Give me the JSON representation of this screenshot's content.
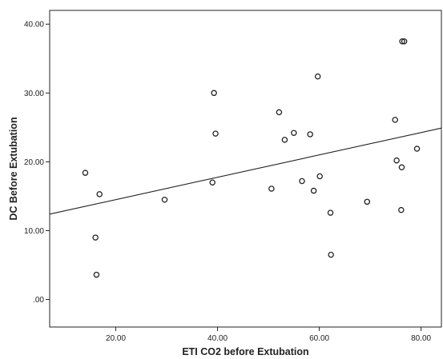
{
  "chart_data": {
    "type": "scatter",
    "xlabel": "ETI CO2 before Extubation",
    "ylabel": "DC Before Extubation",
    "xlim": [
      7,
      84
    ],
    "ylim": [
      -4,
      42
    ],
    "x_ticks": [
      20,
      40,
      60,
      80
    ],
    "y_ticks": [
      0,
      10,
      20,
      30,
      40
    ],
    "x_tick_labels": [
      "20.00",
      "40.00",
      "60.00",
      "80.00"
    ],
    "y_tick_labels": [
      ".00",
      "10.00",
      "20.00",
      "30.00",
      "40.00"
    ],
    "grid": false,
    "legend": "none",
    "marker": "open-circle",
    "colors": {
      "marker": "#222222",
      "line": "#222222",
      "axis": "#222222"
    },
    "points": [
      {
        "x": 14.0,
        "y": 18.4
      },
      {
        "x": 16.0,
        "y": 9.0
      },
      {
        "x": 16.2,
        "y": 3.6
      },
      {
        "x": 16.8,
        "y": 15.3
      },
      {
        "x": 29.6,
        "y": 14.5
      },
      {
        "x": 39.0,
        "y": 17.0
      },
      {
        "x": 39.3,
        "y": 30.0
      },
      {
        "x": 39.6,
        "y": 24.1
      },
      {
        "x": 50.6,
        "y": 16.1
      },
      {
        "x": 52.1,
        "y": 27.2
      },
      {
        "x": 53.2,
        "y": 23.2
      },
      {
        "x": 55.0,
        "y": 24.2
      },
      {
        "x": 56.6,
        "y": 17.2
      },
      {
        "x": 58.2,
        "y": 24.0
      },
      {
        "x": 58.9,
        "y": 15.8
      },
      {
        "x": 59.7,
        "y": 32.4
      },
      {
        "x": 60.1,
        "y": 17.9
      },
      {
        "x": 62.2,
        "y": 12.6
      },
      {
        "x": 62.3,
        "y": 6.5
      },
      {
        "x": 69.4,
        "y": 14.2
      },
      {
        "x": 74.9,
        "y": 26.1
      },
      {
        "x": 75.2,
        "y": 20.2
      },
      {
        "x": 76.1,
        "y": 13.0
      },
      {
        "x": 76.2,
        "y": 19.2
      },
      {
        "x": 76.3,
        "y": 37.5
      },
      {
        "x": 76.7,
        "y": 37.5
      },
      {
        "x": 79.2,
        "y": 21.9
      }
    ],
    "fit_line": {
      "x": [
        7,
        84
      ],
      "y": [
        12.4,
        24.9
      ]
    }
  }
}
